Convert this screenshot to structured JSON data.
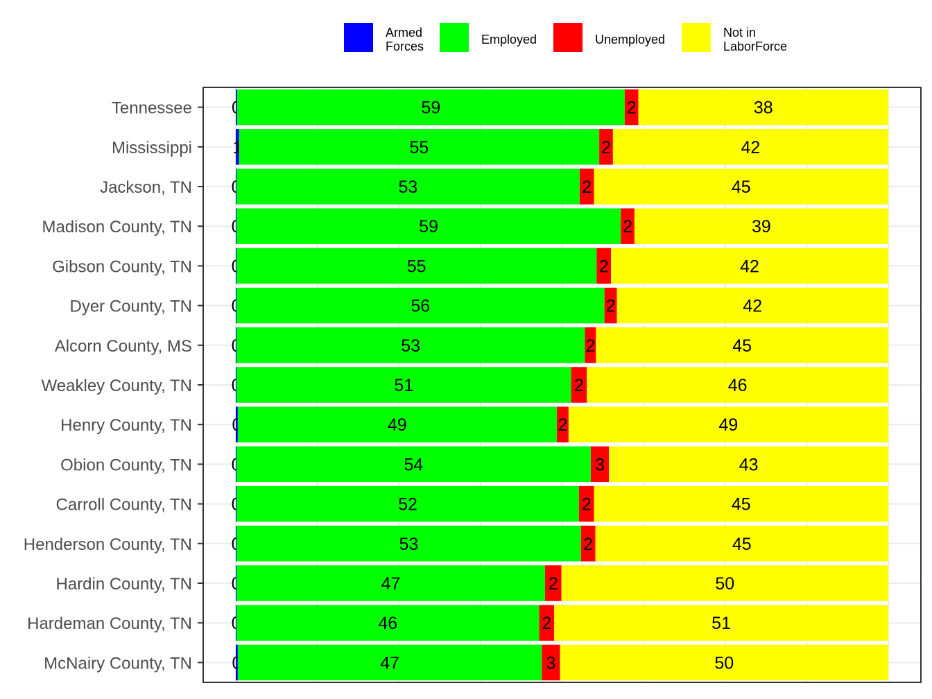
{
  "chart_data": {
    "type": "bar",
    "orientation": "horizontal",
    "stacked": true,
    "categories": [
      "Tennessee",
      "Mississippi",
      "Jackson, TN",
      "Madison County, TN",
      "Gibson County, TN",
      "Dyer County, TN",
      "Alcorn County, MS",
      "Weakley County, TN",
      "Henry County, TN",
      "Obion County, TN",
      "Carroll County, TN",
      "Henderson County, TN",
      "Hardin County, TN",
      "Hardeman County, TN",
      "McNairy County, TN"
    ],
    "series": [
      {
        "name": "Armed Forces",
        "color": "#0000ff",
        "values": [
          0.2,
          0.5,
          0.1,
          0.1,
          0.1,
          0.1,
          0.1,
          0.1,
          0.3,
          0.1,
          0.1,
          0.1,
          0.1,
          0.1,
          0.3
        ],
        "labels": [
          "0",
          "1",
          "0",
          "0",
          "0",
          "0",
          "0",
          "0",
          "0",
          "0",
          "0",
          "0",
          "0",
          "0",
          "0"
        ]
      },
      {
        "name": "Employed",
        "color": "#00ff00",
        "values": [
          59.4,
          55.2,
          52.6,
          58.9,
          55.2,
          56.4,
          53.4,
          51.3,
          48.9,
          54.3,
          52.5,
          52.8,
          47.3,
          46.4,
          46.6
        ],
        "labels": [
          "59",
          "55",
          "53",
          "59",
          "55",
          "56",
          "53",
          "51",
          "49",
          "54",
          "52",
          "53",
          "47",
          "46",
          "47"
        ]
      },
      {
        "name": "Unemployed",
        "color": "#ff0000",
        "values": [
          2.1,
          2.1,
          2.2,
          2.1,
          2.2,
          1.9,
          1.7,
          2.4,
          1.8,
          2.8,
          2.3,
          2.2,
          2.5,
          2.3,
          2.8
        ],
        "labels": [
          "2",
          "2",
          "2",
          "2",
          "2",
          "2",
          "2",
          "2",
          "2",
          "3",
          "2",
          "2",
          "2",
          "2",
          "3"
        ]
      },
      {
        "name": "Not in LaborForce",
        "color": "#ffff00",
        "values": [
          38.3,
          42.2,
          45.1,
          38.9,
          42.5,
          41.6,
          44.8,
          46.2,
          49.0,
          42.8,
          45.1,
          44.9,
          50.1,
          51.2,
          50.3
        ],
        "labels": [
          "38",
          "42",
          "45",
          "39",
          "42",
          "42",
          "45",
          "46",
          "49",
          "43",
          "45",
          "45",
          "50",
          "51",
          "50"
        ]
      }
    ],
    "legend_position": "top",
    "grid": true,
    "xlim": [
      -5,
      105
    ]
  },
  "legend": {
    "items": [
      {
        "label": "Armed\nForces",
        "color": "#0000ff"
      },
      {
        "label": "Employed",
        "color": "#00ff00"
      },
      {
        "label": "Unemployed",
        "color": "#ff0000"
      },
      {
        "label": "Not in\nLaborForce",
        "color": "#ffff00"
      }
    ]
  }
}
